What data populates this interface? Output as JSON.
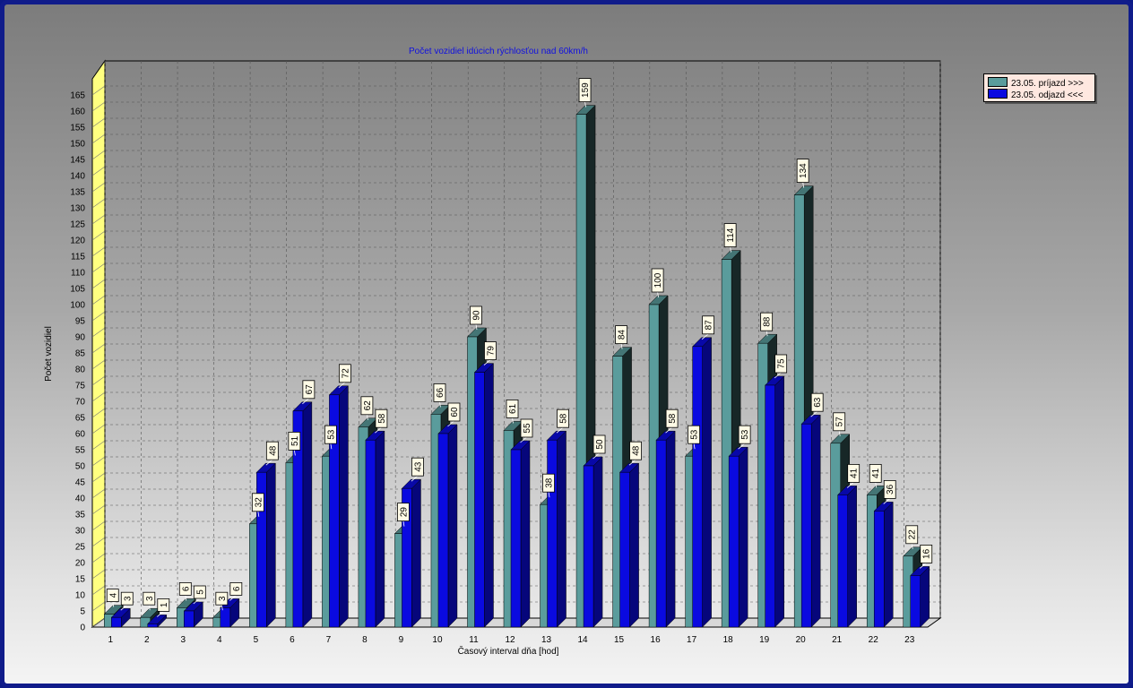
{
  "chart_data": {
    "type": "bar",
    "title": "Počet vozidiel idúcich rýchlosťou nad 60km/h",
    "xlabel": "Časový interval dňa [hod]",
    "ylabel": "Počet vozidiel",
    "ylim": [
      0,
      165
    ],
    "ytick_step": 5,
    "grid": true,
    "legend_position": "top-right",
    "categories": [
      "1",
      "2",
      "3",
      "4",
      "5",
      "6",
      "7",
      "8",
      "9",
      "10",
      "11",
      "12",
      "13",
      "14",
      "15",
      "16",
      "17",
      "18",
      "19",
      "20",
      "21",
      "22",
      "23"
    ],
    "series": [
      {
        "name": "23.05.  príjazd >>>",
        "color": "#5a9c9c",
        "values": [
          4,
          3,
          6,
          3,
          32,
          51,
          53,
          62,
          29,
          66,
          90,
          61,
          38,
          159,
          84,
          100,
          53,
          114,
          88,
          134,
          57,
          41,
          22
        ]
      },
      {
        "name": "23.05.  odjazd <<<",
        "color": "#0a0ae0",
        "values": [
          3,
          1,
          5,
          6,
          48,
          67,
          72,
          58,
          43,
          60,
          79,
          55,
          58,
          50,
          48,
          58,
          87,
          53,
          75,
          63,
          41,
          36,
          16
        ]
      }
    ]
  }
}
